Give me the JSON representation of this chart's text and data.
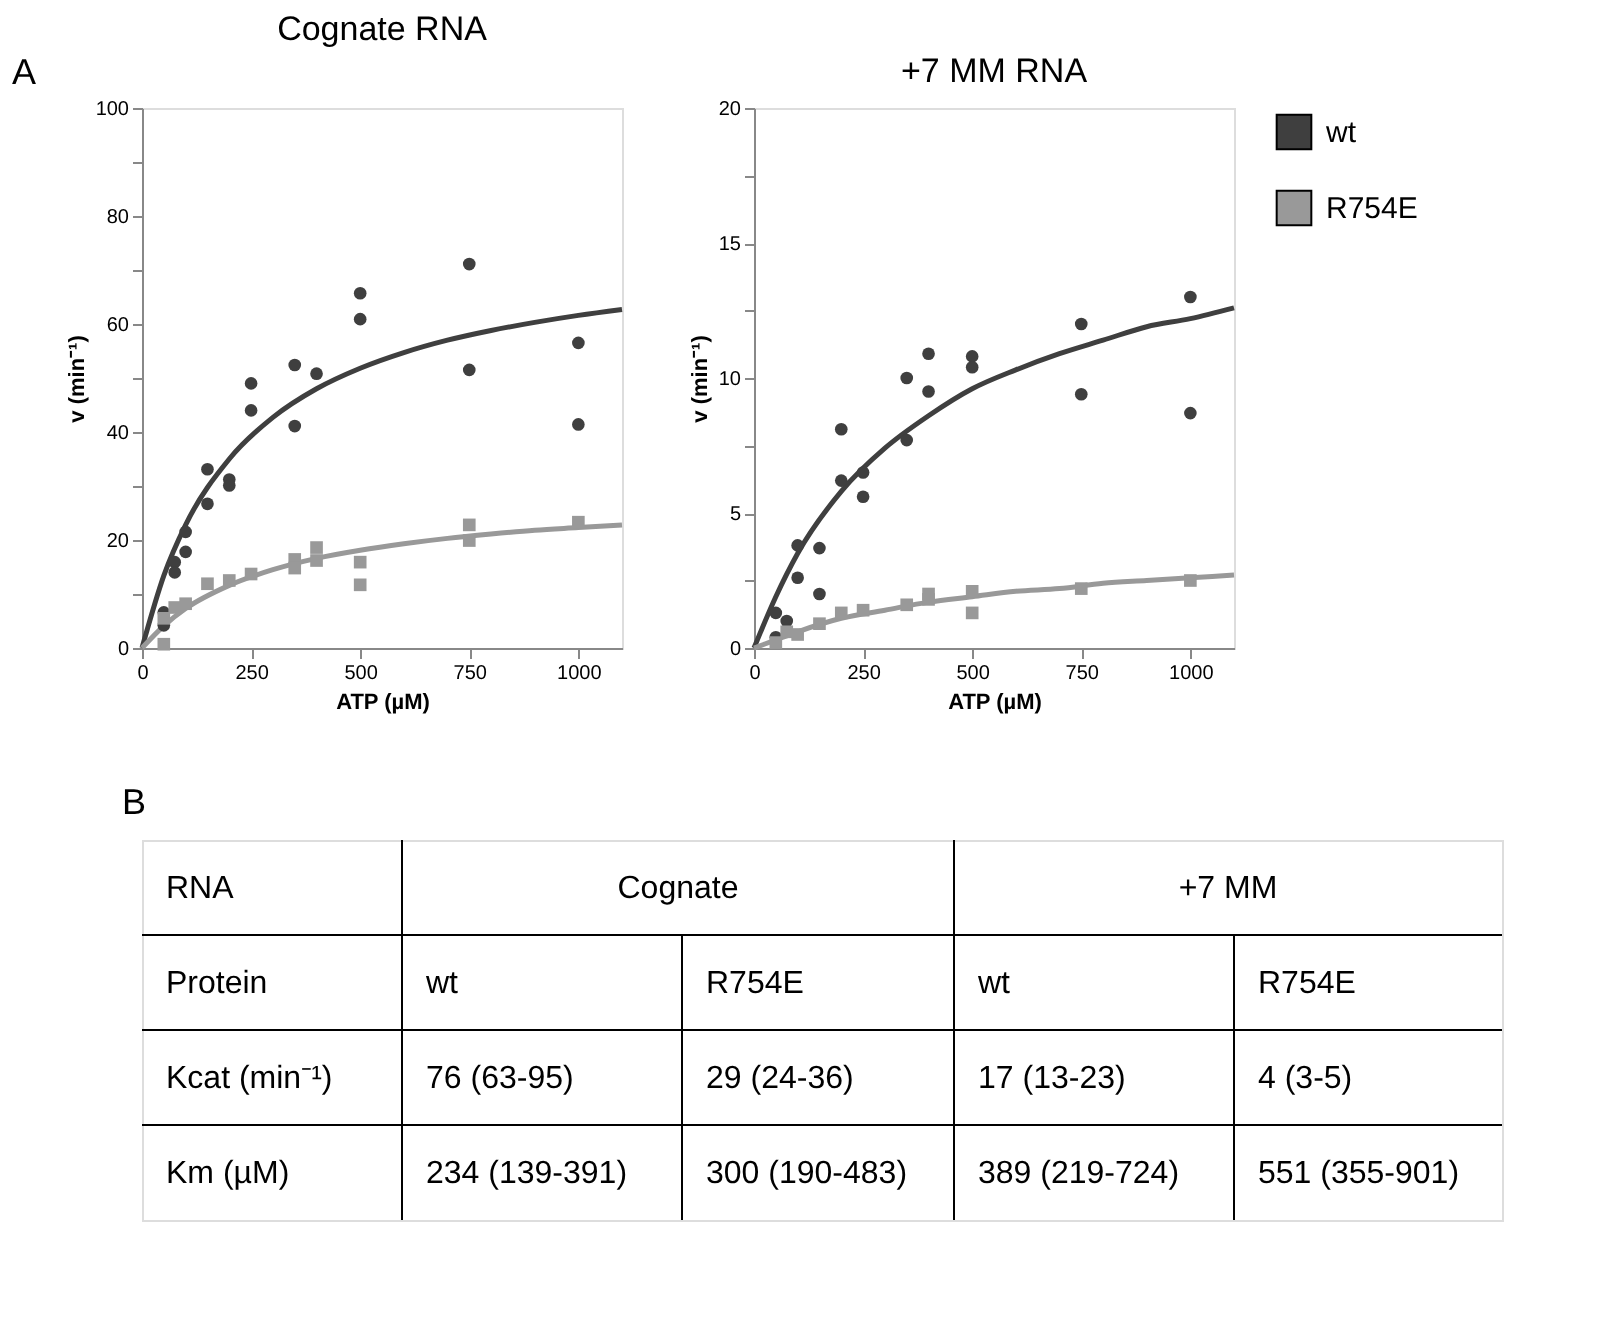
{
  "chart_data": [
    {
      "type": "scatter",
      "title": "Cognate RNA",
      "xlabel": "ATP (µM)",
      "ylabel": "v (min⁻¹)",
      "xlim": [
        0,
        1100
      ],
      "ylim": [
        0,
        100
      ],
      "xticks": [
        0,
        250,
        500,
        750,
        1000
      ],
      "yticks": [
        0,
        {
          "value": 10,
          "label": null
        },
        20,
        {
          "value": 30,
          "label": null
        },
        40,
        {
          "value": 50,
          "label": null
        },
        60,
        {
          "value": 70,
          "label": null
        },
        80,
        {
          "value": 90,
          "label": null
        },
        100
      ],
      "annotations": [
        "A"
      ],
      "series": [
        {
          "type": "line",
          "color": "#3f3f3f",
          "x": [
            0,
            50,
            100,
            200,
            300,
            400,
            500,
            600,
            700,
            800,
            900,
            1000,
            1100
          ],
          "values": [
            0,
            13.4,
            22.8,
            35.0,
            42.7,
            48.0,
            51.8,
            54.7,
            57.0,
            58.8,
            60.3,
            61.6,
            62.7
          ]
        },
        {
          "type": "line",
          "color": "#999999",
          "x": [
            0,
            50,
            100,
            200,
            300,
            400,
            500,
            600,
            700,
            800,
            900,
            1000,
            1100
          ],
          "values": [
            0,
            4.1,
            7.3,
            11.6,
            14.5,
            16.6,
            18.1,
            19.3,
            20.3,
            21.1,
            21.8,
            22.3,
            22.8
          ]
        },
        {
          "color": "#3f3f3f",
          "marker": "circle",
          "x": [
            50,
            50,
            75,
            75,
            100,
            100,
            150,
            150,
            200,
            200,
            250,
            250,
            350,
            350,
            400,
            500,
            500,
            750,
            750,
            1000,
            1000
          ],
          "values": [
            6.6,
            4.2,
            15.9,
            14,
            21.5,
            17.8,
            33.1,
            26.7,
            31.2,
            30.1,
            49,
            44,
            52.4,
            41.1,
            50.8,
            65.7,
            60.9,
            71.1,
            51.5,
            56.5,
            41.4
          ]
        },
        {
          "color": "#999999",
          "marker": "square",
          "x": [
            50,
            50,
            75,
            100,
            150,
            200,
            250,
            350,
            350,
            400,
            400,
            500,
            500,
            750,
            750,
            1000
          ],
          "values": [
            0.7,
            5.5,
            7.5,
            8.2,
            11.9,
            12.5,
            13.7,
            16.4,
            14.8,
            18.6,
            16.2,
            15.9,
            11.7,
            22.8,
            19.9,
            23.3
          ]
        }
      ]
    },
    {
      "type": "scatter",
      "title": "+7 MM RNA",
      "xlabel": "ATP (µM)",
      "ylabel": "v (min⁻¹)",
      "xlim": [
        0,
        1100
      ],
      "ylim": [
        0,
        20
      ],
      "legend": "top right",
      "xticks": [
        0,
        250,
        500,
        750,
        1000
      ],
      "yticks": [
        0,
        {
          "value": 2.5,
          "label": null
        },
        5,
        {
          "value": 7.5,
          "label": null
        },
        10,
        {
          "value": 12.5,
          "label": null
        },
        15,
        {
          "value": 17.5,
          "label": null
        },
        20
      ],
      "series": [
        {
          "type": "line",
          "color": "#3f3f3f",
          "x": [
            0,
            50,
            100,
            200,
            300,
            400,
            500,
            600,
            700,
            800,
            900,
            1000,
            1100
          ],
          "values": [
            0,
            1.9,
            3.5,
            5.8,
            7.4,
            8.6,
            9.6,
            10.3,
            10.9,
            11.4,
            11.9,
            12.2,
            12.6
          ]
        },
        {
          "type": "line",
          "color": "#999999",
          "x": [
            0,
            50,
            100,
            200,
            300,
            400,
            500,
            600,
            700,
            800,
            900,
            1000,
            1100
          ],
          "values": [
            0,
            0.3,
            0.6,
            1.1,
            1.4,
            1.7,
            1.9,
            2.1,
            2.2,
            2.4,
            2.5,
            2.6,
            2.7
          ]
        },
        {
          "name": "wt",
          "color": "#3f3f3f",
          "marker": "circle",
          "x": [
            50,
            50,
            75,
            100,
            100,
            150,
            150,
            200,
            200,
            250,
            250,
            350,
            350,
            400,
            400,
            500,
            500,
            750,
            750,
            1000,
            1000
          ],
          "values": [
            1.3,
            0.4,
            1.0,
            3.8,
            2.6,
            3.7,
            2.0,
            8.1,
            6.2,
            6.5,
            5.6,
            10.0,
            7.7,
            10.9,
            9.5,
            10.8,
            10.4,
            12.0,
            9.4,
            13.0,
            8.7
          ]
        },
        {
          "name": "R754E",
          "color": "#999999",
          "marker": "square",
          "x": [
            50,
            75,
            100,
            150,
            200,
            250,
            350,
            400,
            400,
            500,
            500,
            750,
            1000
          ],
          "values": [
            0.2,
            0.6,
            0.5,
            0.9,
            1.3,
            1.4,
            1.6,
            2.0,
            1.8,
            2.1,
            1.3,
            2.2,
            2.5
          ]
        }
      ]
    },
    {
      "type": "other",
      "annotations": [
        "B",
        "RNA",
        "Cognate",
        "+7 MM",
        "Protein",
        "wt",
        "R754E",
        "wt",
        "R754E",
        "Kcat (min⁻¹)",
        "76 (63-95)",
        "29 (24-36)",
        "17 (13-23)",
        "4 (3-5)",
        "Km (µM)",
        "234 (139-391)",
        "300 (190-483)",
        "389 (219-724)",
        "551 (355-901)"
      ]
    }
  ]
}
